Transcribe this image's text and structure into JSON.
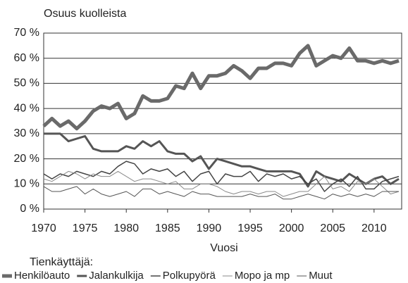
{
  "chart_data": {
    "type": "line",
    "y_label": "Osuus kuolleista",
    "x_label": "Vuosi",
    "legend_title": "Tienkäyttäjä:",
    "x": [
      1970,
      1971,
      1972,
      1973,
      1974,
      1975,
      1976,
      1977,
      1978,
      1979,
      1980,
      1981,
      1982,
      1983,
      1984,
      1985,
      1986,
      1987,
      1988,
      1989,
      1990,
      1991,
      1992,
      1993,
      1994,
      1995,
      1996,
      1997,
      1998,
      1999,
      2000,
      2001,
      2002,
      2003,
      2004,
      2005,
      2006,
      2007,
      2008,
      2009,
      2010,
      2011,
      2012,
      2013
    ],
    "xlim": [
      1970,
      2013
    ],
    "xticks": [
      1970,
      1975,
      1980,
      1985,
      1990,
      1995,
      2000,
      2005,
      2010
    ],
    "ylim": [
      0,
      70
    ],
    "yticks": [
      {
        "value": 0,
        "label": "0 %"
      },
      {
        "value": 10,
        "label": "10 %"
      },
      {
        "value": 20,
        "label": "20 %"
      },
      {
        "value": 30,
        "label": "30 %"
      },
      {
        "value": 40,
        "label": "40 %"
      },
      {
        "value": 50,
        "label": "50 %"
      },
      {
        "value": 60,
        "label": "60 %"
      },
      {
        "value": 70,
        "label": "70 %"
      }
    ],
    "grid": true,
    "legend": "bottom",
    "series": [
      {
        "name": "Henkilöauto",
        "color": "#6a6a6a",
        "width": 5,
        "values": [
          33,
          36,
          33,
          35,
          32,
          35,
          39,
          41,
          40,
          42,
          36,
          38,
          45,
          43,
          43,
          44,
          49,
          48,
          54,
          48,
          53,
          53,
          54,
          57,
          55,
          52,
          56,
          56,
          58,
          58,
          57,
          62,
          65,
          57,
          59,
          61,
          60,
          64,
          59,
          59,
          58,
          59,
          58,
          59
        ]
      },
      {
        "name": "Jalankulkija",
        "color": "#555555",
        "width": 3,
        "values": [
          30,
          30,
          30,
          27,
          28,
          29,
          24,
          23,
          23,
          23,
          25,
          24,
          27,
          25,
          27,
          23,
          22,
          22,
          19,
          21,
          16,
          20,
          19,
          18,
          17,
          17,
          16,
          15,
          15,
          15,
          15,
          14,
          9,
          15,
          13,
          12,
          11,
          14,
          12,
          10,
          12,
          13,
          10,
          12
        ]
      },
      {
        "name": "Polkupyörä",
        "color": "#444444",
        "width": 1.5,
        "values": [
          14,
          12,
          14,
          13,
          15,
          14,
          13,
          15,
          14,
          17,
          19,
          18,
          14,
          16,
          15,
          16,
          13,
          15,
          11,
          14,
          15,
          10,
          14,
          13,
          13,
          15,
          11,
          14,
          13,
          14,
          12,
          13,
          10,
          12,
          7,
          10,
          12,
          9,
          13,
          8,
          8,
          11,
          12,
          13
        ]
      },
      {
        "name": "Mopo ja mp",
        "color": "#8a8a8a",
        "width": 1,
        "values": [
          12,
          11,
          13,
          15,
          14,
          12,
          14,
          13,
          13,
          15,
          13,
          11,
          12,
          12,
          11,
          10,
          11,
          8,
          8,
          10,
          10,
          9,
          7,
          6,
          7,
          7,
          6,
          7,
          7,
          5,
          6,
          7,
          7,
          10,
          13,
          8,
          9,
          7,
          11,
          10,
          12,
          9,
          6,
          7
        ]
      },
      {
        "name": "Muut",
        "color": "#555555",
        "width": 1,
        "values": [
          9,
          7,
          7,
          8,
          9,
          6,
          8,
          6,
          5,
          6,
          7,
          5,
          8,
          8,
          6,
          7,
          6,
          5,
          7,
          6,
          6,
          5,
          5,
          5,
          5,
          6,
          5,
          5,
          6,
          4,
          4,
          5,
          6,
          5,
          4,
          6,
          5,
          6,
          5,
          6,
          5,
          7,
          7,
          7
        ]
      }
    ]
  }
}
